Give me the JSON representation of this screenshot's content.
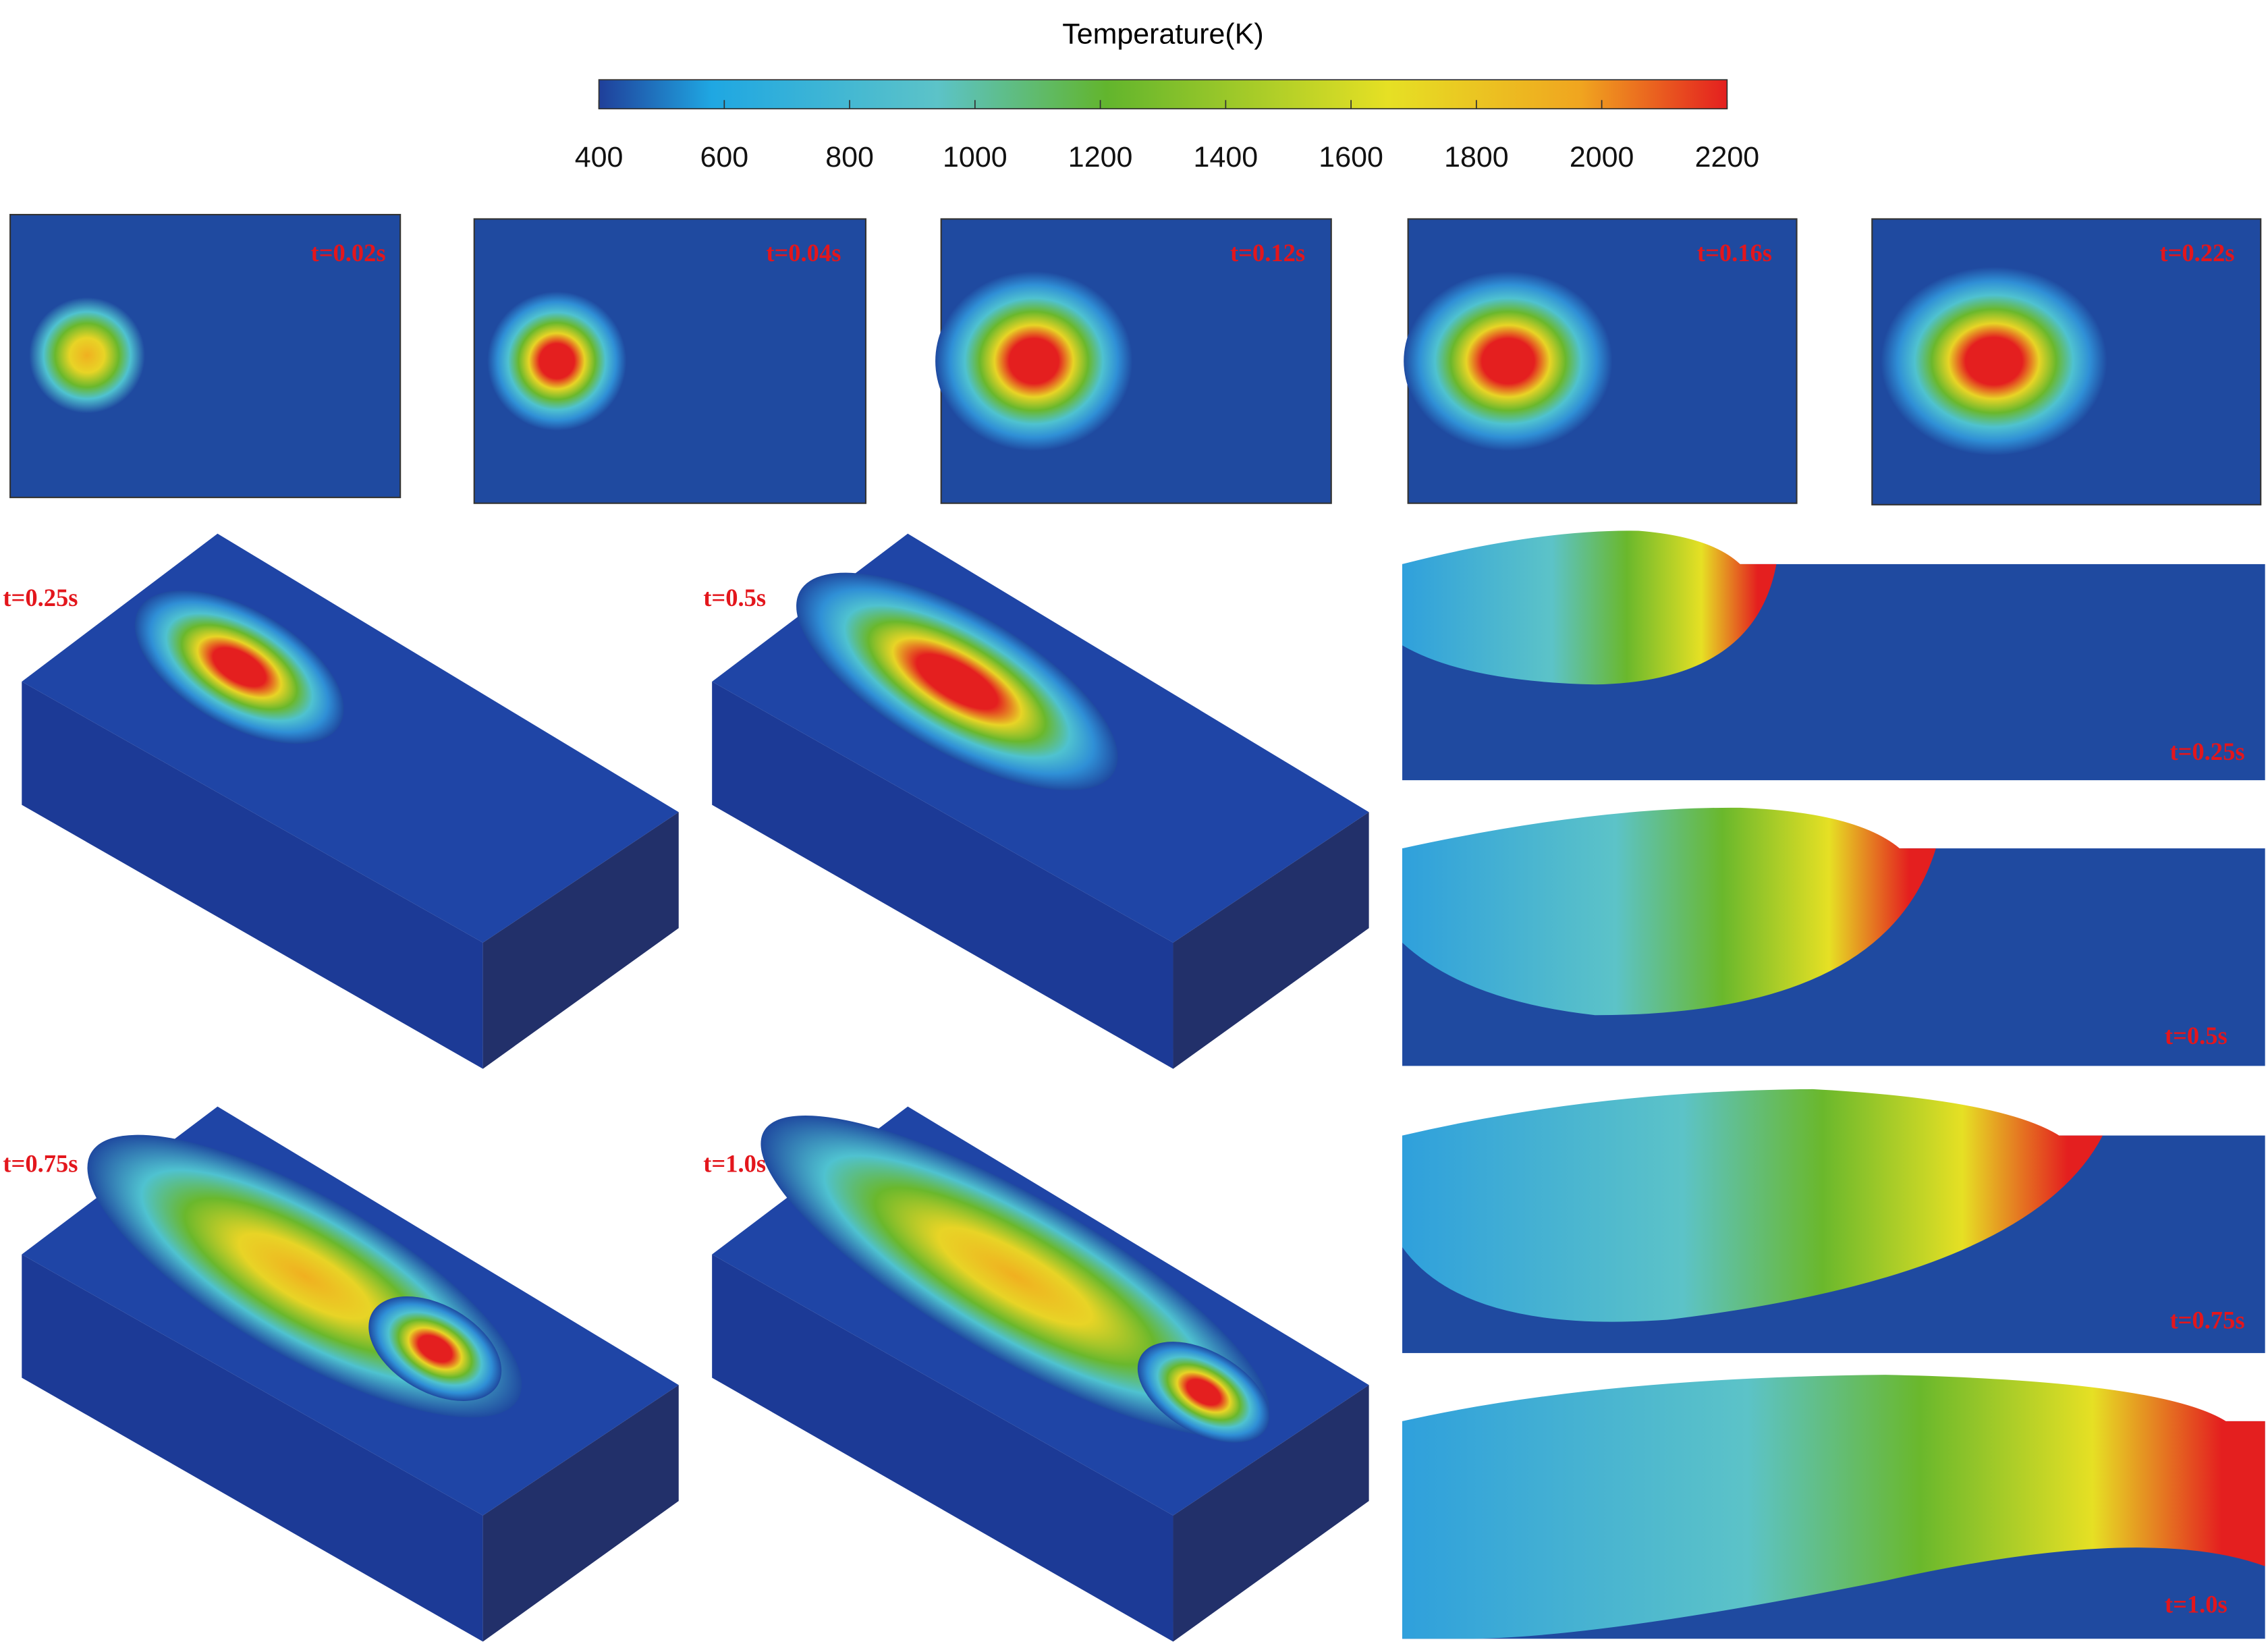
{
  "colorbar": {
    "title": "Temperature(K)",
    "lim": [
      400,
      2200
    ],
    "ticks": [
      400,
      600,
      800,
      1000,
      1200,
      1400,
      1600,
      1800,
      2000,
      2200
    ]
  },
  "panels": {
    "top_views": [
      "t=0.02s",
      "t=0.04s",
      "t=0.12s",
      "t=0.16s",
      "t=0.22s"
    ],
    "views_3d": [
      "t=0.25s",
      "t=0.5s",
      "t=0.75s",
      "t=1.0s"
    ],
    "sections": [
      "t=0.25s",
      "t=0.5s",
      "t=0.75s",
      "t=1.0s"
    ]
  }
}
